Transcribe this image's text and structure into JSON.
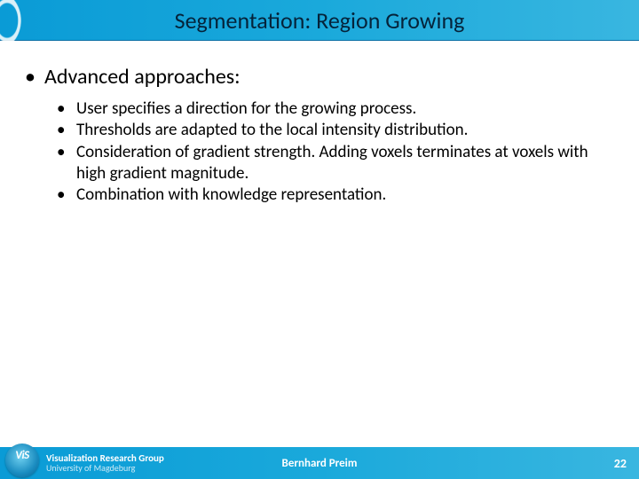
{
  "title": "Segmentation: Region Growing",
  "heading": "Advanced approaches:",
  "bullets": [
    "User specifies a direction for the growing process.",
    "Thresholds are adapted to the local intensity distribution.",
    "Consideration of gradient strength. Adding voxels terminates at voxels with high gradient magnitude.",
    "Combination with knowledge representation."
  ],
  "footer": {
    "group": "Visualization Research Group",
    "university": "University of Magdeburg",
    "author": "Bernhard Preim",
    "page": "22"
  },
  "colors": {
    "header_gradient_start": "#0a9bd6",
    "header_gradient_end": "#39b6e0",
    "title_color": "#05233a",
    "body_text": "#000000",
    "footer_text": "#ffffff"
  },
  "fonts": {
    "title_size_pt": 26,
    "l1_size_pt": 24,
    "l2_size_pt": 19,
    "footer_author_pt": 13
  }
}
